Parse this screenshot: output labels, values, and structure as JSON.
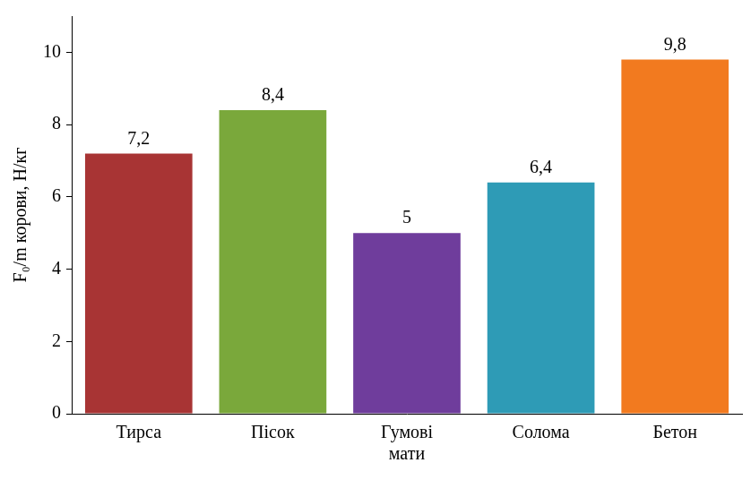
{
  "chart_data": {
    "type": "bar",
    "y_label": "F₀/m корови, Н/кг",
    "categories": [
      "Тирса",
      "Пісок",
      "Гумові мати",
      "Солома",
      "Бетон"
    ],
    "values": [
      7.2,
      8.4,
      5,
      6.4,
      9.8
    ],
    "value_labels": [
      "7,2",
      "8,4",
      "5",
      "6,4",
      "9,8"
    ],
    "colors": [
      "#a83434",
      "#7aa83b",
      "#6f3d9c",
      "#2e9bb6",
      "#f27a1f"
    ],
    "ylim": [
      0,
      11
    ],
    "yticks": [
      0,
      2,
      4,
      6,
      8,
      10
    ],
    "grid": false,
    "data_labels": true
  }
}
